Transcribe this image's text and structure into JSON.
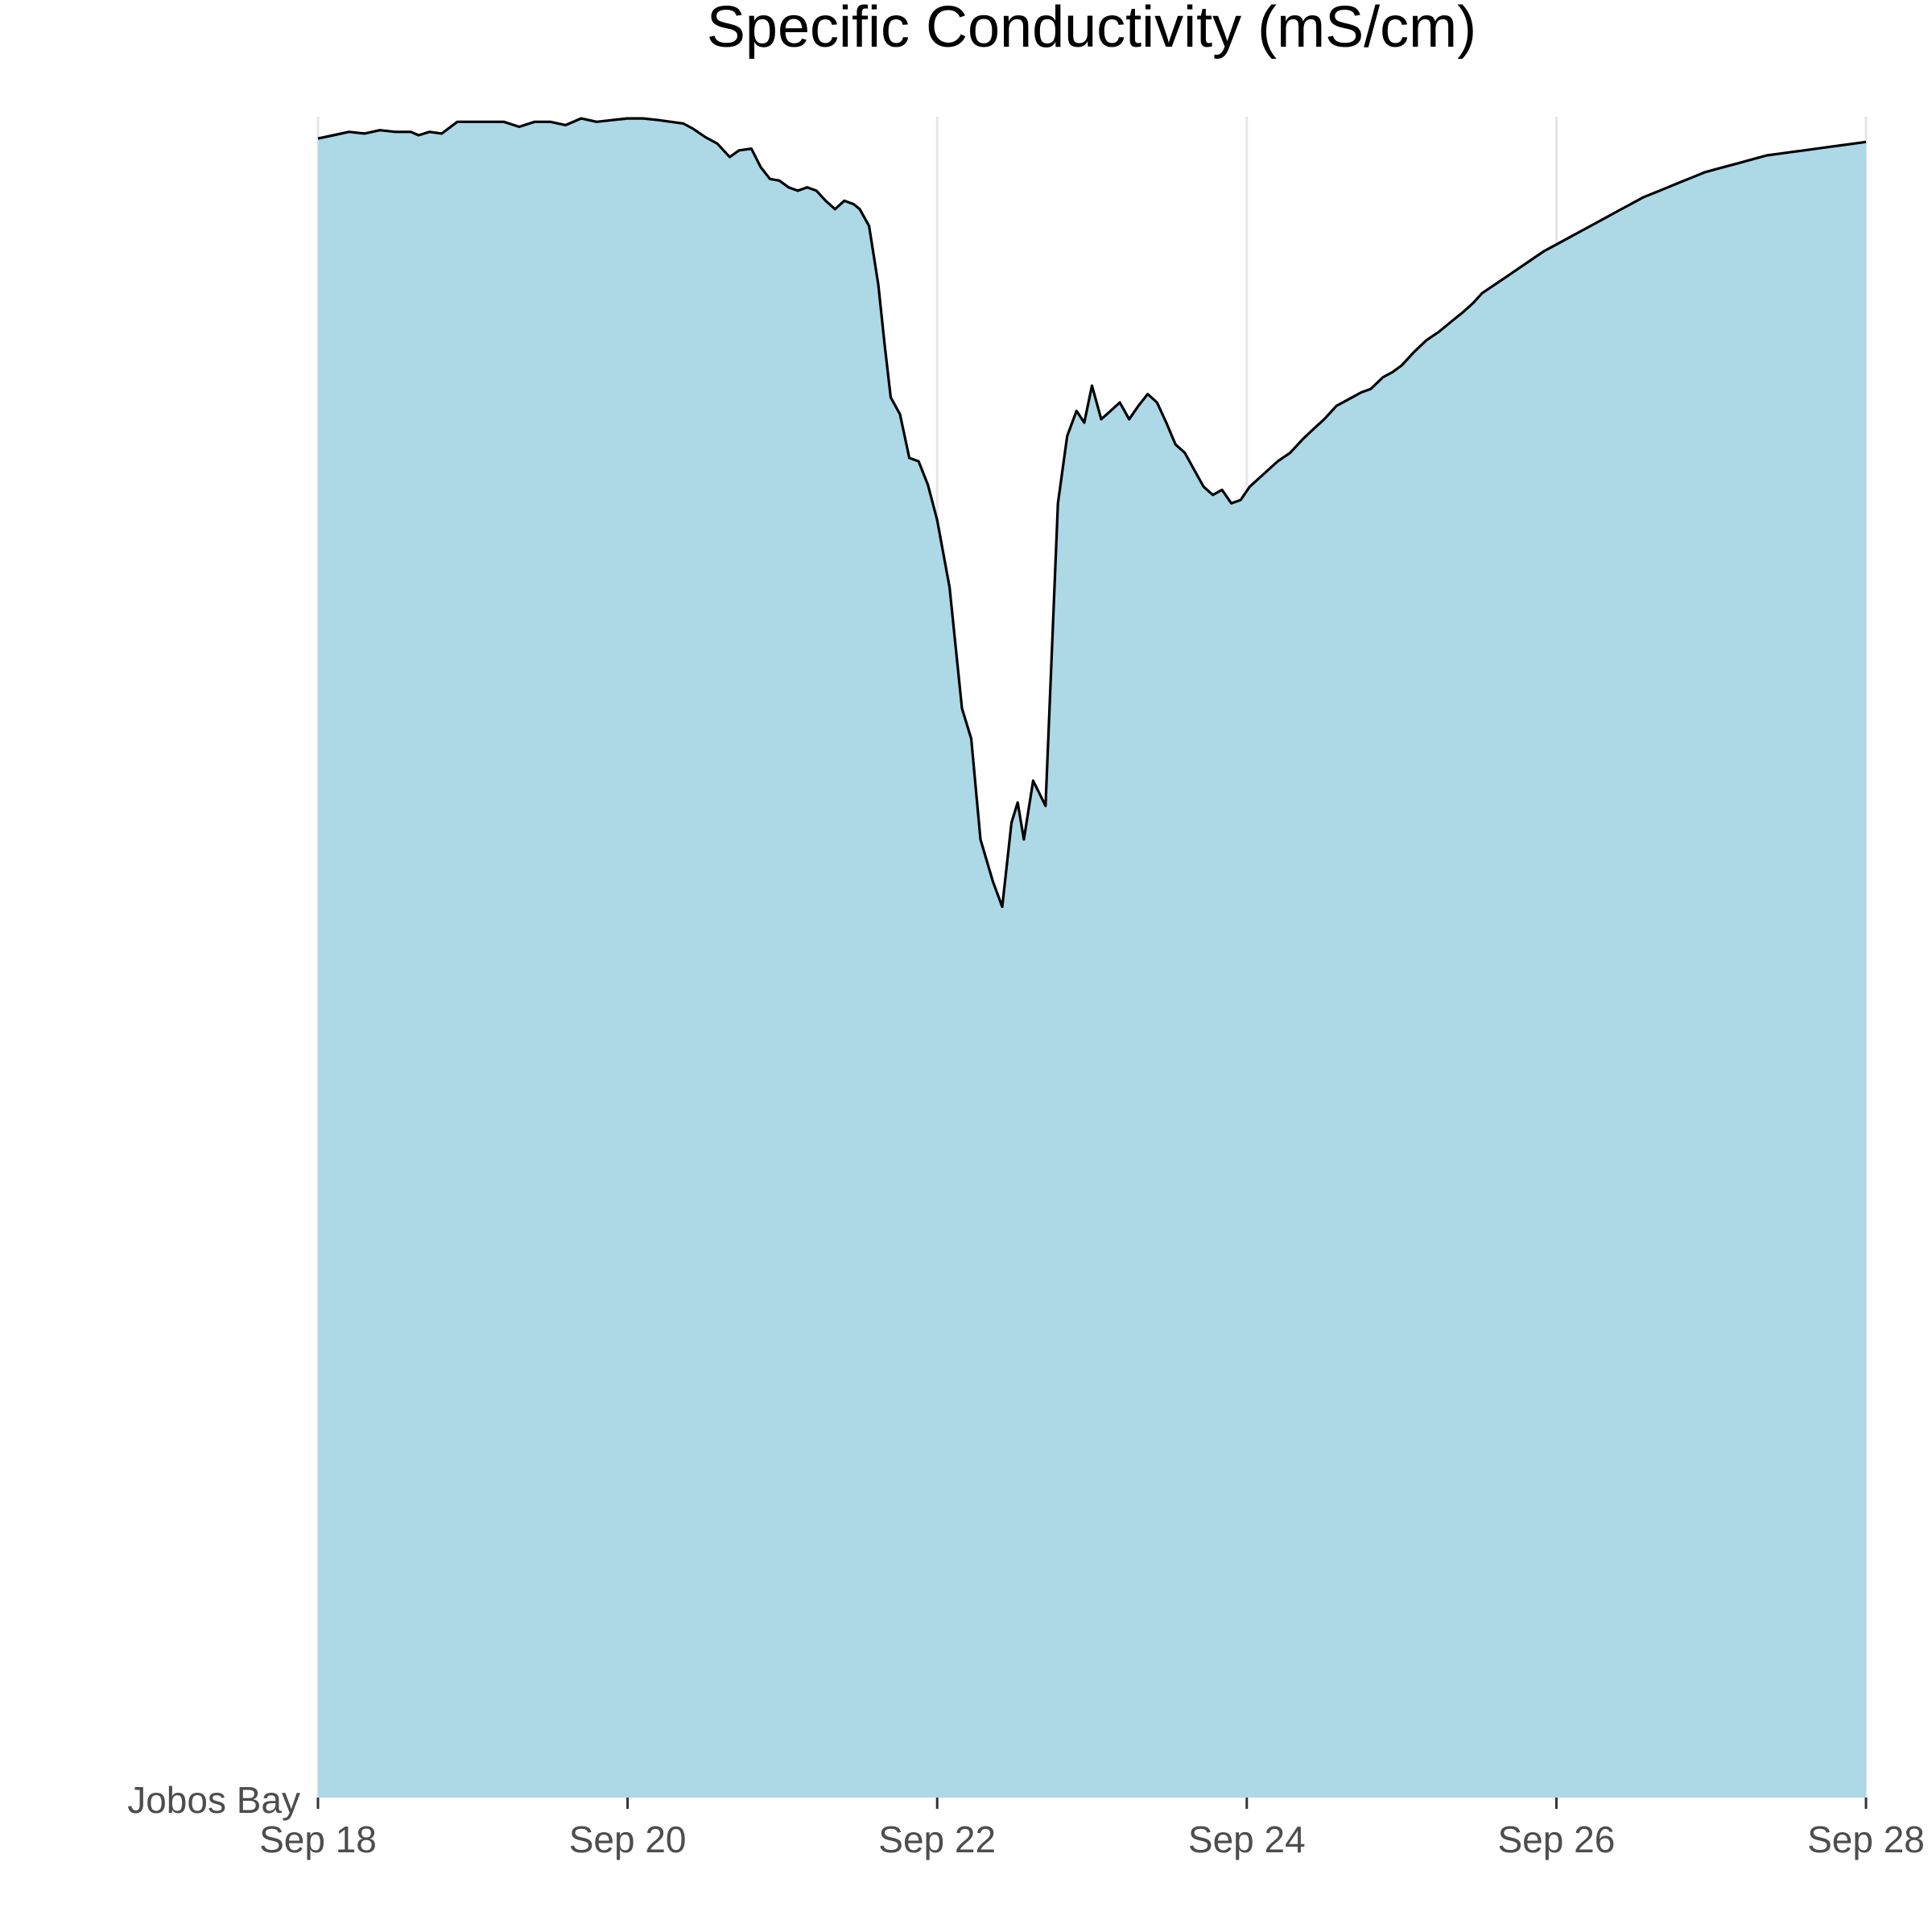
{
  "chart_data": {
    "type": "area",
    "title": "Specific Conductivity (mS/cm)",
    "xlabel": "",
    "ylabel": "",
    "x_range": [
      "Sep 18",
      "Sep 28"
    ],
    "x_ticks": [
      "Sep 18",
      "Sep 20",
      "Sep 22",
      "Sep 24",
      "Sep 26",
      "Sep 28"
    ],
    "y_category": "Jobos Bay",
    "grid": "vertical",
    "legend": "none",
    "colors": {
      "fill": "#add8e6",
      "line": "#000000",
      "grid": "#e6e6e6"
    },
    "series": [
      {
        "name": "Jobos Bay",
        "note_units": "x in days after Sep 18 00:00; y as relative level 0-1 of panel",
        "points": [
          [
            0.0,
            0.987
          ],
          [
            0.1,
            0.989
          ],
          [
            0.2,
            0.991
          ],
          [
            0.3,
            0.99
          ],
          [
            0.4,
            0.992
          ],
          [
            0.5,
            0.991
          ],
          [
            0.6,
            0.991
          ],
          [
            0.65,
            0.989
          ],
          [
            0.72,
            0.991
          ],
          [
            0.8,
            0.99
          ],
          [
            0.9,
            0.997
          ],
          [
            1.0,
            0.997
          ],
          [
            1.1,
            0.997
          ],
          [
            1.2,
            0.997
          ],
          [
            1.3,
            0.994
          ],
          [
            1.4,
            0.997
          ],
          [
            1.5,
            0.997
          ],
          [
            1.6,
            0.995
          ],
          [
            1.7,
            0.999
          ],
          [
            1.8,
            0.997
          ],
          [
            1.9,
            0.998
          ],
          [
            2.0,
            0.999
          ],
          [
            2.1,
            0.999
          ],
          [
            2.2,
            0.998
          ],
          [
            2.28,
            0.997
          ],
          [
            2.36,
            0.996
          ],
          [
            2.42,
            0.993
          ],
          [
            2.5,
            0.988
          ],
          [
            2.58,
            0.984
          ],
          [
            2.66,
            0.976
          ],
          [
            2.72,
            0.98
          ],
          [
            2.8,
            0.981
          ],
          [
            2.86,
            0.97
          ],
          [
            2.92,
            0.963
          ],
          [
            2.98,
            0.962
          ],
          [
            3.04,
            0.958
          ],
          [
            3.1,
            0.956
          ],
          [
            3.16,
            0.958
          ],
          [
            3.22,
            0.956
          ],
          [
            3.28,
            0.95
          ],
          [
            3.34,
            0.945
          ],
          [
            3.4,
            0.95
          ],
          [
            3.46,
            0.948
          ],
          [
            3.5,
            0.945
          ],
          [
            3.56,
            0.935
          ],
          [
            3.62,
            0.9
          ],
          [
            3.66,
            0.865
          ],
          [
            3.7,
            0.833
          ],
          [
            3.76,
            0.823
          ],
          [
            3.82,
            0.797
          ],
          [
            3.88,
            0.795
          ],
          [
            3.94,
            0.781
          ],
          [
            4.0,
            0.76
          ],
          [
            4.08,
            0.72
          ],
          [
            4.16,
            0.648
          ],
          [
            4.22,
            0.63
          ],
          [
            4.28,
            0.57
          ],
          [
            4.36,
            0.545
          ],
          [
            4.42,
            0.53
          ],
          [
            4.48,
            0.58
          ],
          [
            4.52,
            0.592
          ],
          [
            4.56,
            0.57
          ],
          [
            4.62,
            0.605
          ],
          [
            4.7,
            0.59
          ],
          [
            4.78,
            0.77
          ],
          [
            4.84,
            0.81
          ],
          [
            4.9,
            0.825
          ],
          [
            4.95,
            0.818
          ],
          [
            5.0,
            0.84
          ],
          [
            5.06,
            0.82
          ],
          [
            5.12,
            0.825
          ],
          [
            5.18,
            0.83
          ],
          [
            5.24,
            0.82
          ],
          [
            5.3,
            0.828
          ],
          [
            5.36,
            0.835
          ],
          [
            5.42,
            0.83
          ],
          [
            5.48,
            0.818
          ],
          [
            5.54,
            0.805
          ],
          [
            5.6,
            0.8
          ],
          [
            5.66,
            0.79
          ],
          [
            5.72,
            0.78
          ],
          [
            5.78,
            0.775
          ],
          [
            5.84,
            0.778
          ],
          [
            5.9,
            0.77
          ],
          [
            5.96,
            0.772
          ],
          [
            6.02,
            0.78
          ],
          [
            6.08,
            0.785
          ],
          [
            6.14,
            0.79
          ],
          [
            6.2,
            0.795
          ],
          [
            6.28,
            0.8
          ],
          [
            6.36,
            0.808
          ],
          [
            6.44,
            0.815
          ],
          [
            6.5,
            0.82
          ],
          [
            6.58,
            0.828
          ],
          [
            6.66,
            0.832
          ],
          [
            6.74,
            0.836
          ],
          [
            6.8,
            0.838
          ],
          [
            6.88,
            0.845
          ],
          [
            6.94,
            0.848
          ],
          [
            7.0,
            0.852
          ],
          [
            7.08,
            0.86
          ],
          [
            7.16,
            0.867
          ],
          [
            7.24,
            0.872
          ],
          [
            7.32,
            0.878
          ],
          [
            7.4,
            0.884
          ],
          [
            7.46,
            0.889
          ],
          [
            7.52,
            0.895
          ],
          [
            7.6,
            0.9
          ],
          [
            7.68,
            0.905
          ],
          [
            7.76,
            0.91
          ],
          [
            7.84,
            0.915
          ],
          [
            7.92,
            0.92
          ],
          [
            8.0,
            0.924
          ],
          [
            8.08,
            0.928
          ],
          [
            8.16,
            0.932
          ],
          [
            8.24,
            0.936
          ],
          [
            8.32,
            0.94
          ],
          [
            8.4,
            0.944
          ],
          [
            8.48,
            0.948
          ],
          [
            8.56,
            0.952
          ],
          [
            8.64,
            0.955
          ],
          [
            8.72,
            0.958
          ],
          [
            8.8,
            0.961
          ],
          [
            8.88,
            0.964
          ],
          [
            8.96,
            0.967
          ],
          [
            9.04,
            0.969
          ],
          [
            9.12,
            0.971
          ],
          [
            9.2,
            0.973
          ],
          [
            9.28,
            0.975
          ],
          [
            9.36,
            0.977
          ],
          [
            9.44,
            0.978
          ],
          [
            9.52,
            0.979
          ],
          [
            9.6,
            0.98
          ],
          [
            9.68,
            0.981
          ],
          [
            9.76,
            0.982
          ],
          [
            9.84,
            0.983
          ],
          [
            9.92,
            0.984
          ],
          [
            10.0,
            0.985
          ]
        ]
      }
    ]
  }
}
